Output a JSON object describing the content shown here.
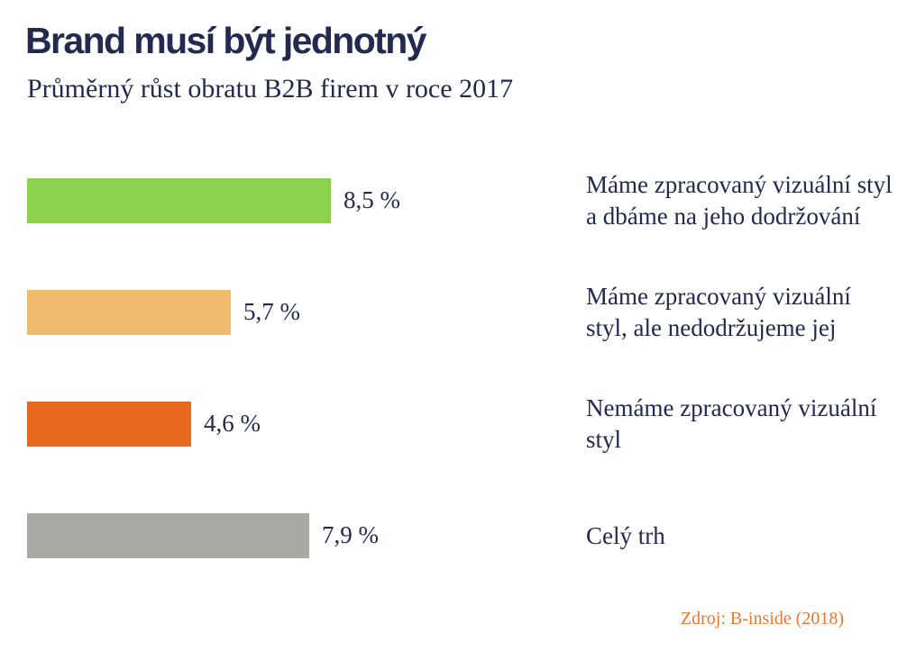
{
  "title": "Brand musí být jednotný",
  "subtitle": "Průměrný růst obratu B2B firem v roce 2017",
  "source": "Zdroj: B-inside (2018)",
  "chart_data": {
    "type": "bar",
    "orientation": "horizontal",
    "title": "Brand musí být jednotný",
    "subtitle": "Průměrný růst obratu B2B firem v roce 2017",
    "unit": "%",
    "categories": [
      "Máme zpracovaný vizuální styl a dbáme na jeho dodržování",
      "Máme zpracovaný vizuální styl, ale nedodržujeme jej",
      "Nemáme zpracovaný vizuální styl",
      "Celý trh"
    ],
    "values": [
      8.5,
      5.7,
      4.6,
      7.9
    ],
    "value_labels": [
      "8,5 %",
      "5,7 %",
      "4,6 %",
      "7,9 %"
    ],
    "colors": [
      "#8cd24c",
      "#efbb6f",
      "#e9681f",
      "#aaaaa5"
    ],
    "xlim": [
      0,
      8.5
    ],
    "grid": false,
    "legend": "none"
  }
}
